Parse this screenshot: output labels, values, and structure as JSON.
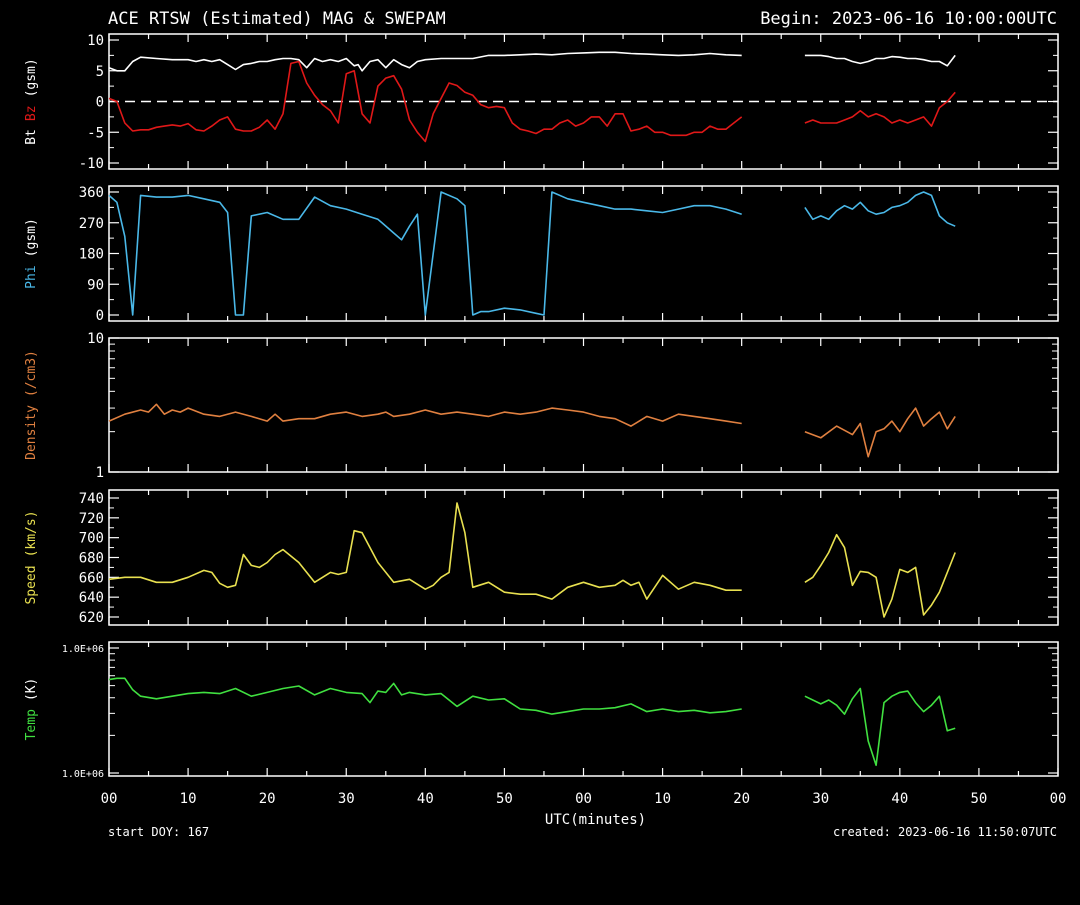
{
  "header": {
    "title": "ACE RTSW (Estimated) MAG & SWEPAM",
    "begin": "Begin: 2023-06-16 10:00:00UTC"
  },
  "footer": {
    "start_doy": "start DOY: 167",
    "created": "created: 2023-06-16 11:50:07UTC"
  },
  "colors": {
    "background": "#000000",
    "axis": "#ffffff",
    "bt": "#ffffff",
    "bz": "#e01818",
    "phi": "#4ab8e8",
    "density": "#e08040",
    "speed": "#e8e050",
    "temp": "#40e040"
  },
  "chart_data": [
    {
      "type": "line",
      "ylabel": [
        "Bt",
        "Bz",
        "(gsm)"
      ],
      "ylabel_colors": [
        "#ffffff",
        "#e01818",
        "#ffffff"
      ],
      "ylim": [
        -10,
        10
      ],
      "y_ticks": [
        "10",
        "5",
        "0",
        "-5",
        "-10"
      ],
      "y_tick_values": [
        10,
        5,
        0,
        -5,
        -10
      ],
      "zero_line": "dashed",
      "series": [
        {
          "name": "Bt",
          "color": "#ffffff",
          "x": [
            0,
            1,
            2,
            3,
            4,
            6,
            8,
            10,
            11,
            12,
            13,
            14,
            15,
            16,
            17,
            18,
            19,
            20,
            21,
            22,
            23,
            24,
            25,
            26,
            27,
            28,
            29,
            30,
            31,
            31.5,
            32,
            33,
            34,
            35,
            36,
            37,
            38,
            39,
            40,
            42,
            44,
            46,
            48,
            50,
            52,
            54,
            56,
            58,
            60,
            62,
            64,
            66,
            68,
            70,
            72,
            74,
            76,
            78,
            80,
            "gap",
            88,
            90,
            91,
            92,
            93,
            94,
            95,
            96,
            97,
            98,
            99,
            100,
            101,
            102,
            103,
            104,
            105,
            106,
            107
          ],
          "y": [
            5.5,
            5.0,
            5.0,
            6.5,
            7.2,
            7.0,
            6.8,
            6.8,
            6.5,
            6.8,
            6.5,
            6.8,
            6.0,
            5.2,
            6.0,
            6.2,
            6.5,
            6.5,
            6.8,
            7.0,
            7.0,
            6.8,
            5.5,
            7.0,
            6.5,
            6.8,
            6.5,
            7.0,
            5.8,
            6.0,
            5.0,
            6.5,
            6.8,
            5.5,
            6.8,
            6.0,
            5.5,
            6.5,
            6.8,
            7.0,
            7.0,
            7.0,
            7.5,
            7.5,
            7.6,
            7.7,
            7.6,
            7.8,
            7.9,
            8.0,
            8.0,
            7.8,
            7.7,
            7.6,
            7.5,
            7.6,
            7.8,
            7.6,
            7.5,
            null,
            7.5,
            7.5,
            7.3,
            7.0,
            7.0,
            6.5,
            6.2,
            6.5,
            7.0,
            7.0,
            7.3,
            7.2,
            7.0,
            7.0,
            6.8,
            6.5,
            6.5,
            5.8,
            7.5
          ]
        },
        {
          "name": "Bz",
          "color": "#e01818",
          "x": [
            0,
            1,
            2,
            3,
            4,
            5,
            6,
            7,
            8,
            9,
            10,
            11,
            12,
            13,
            14,
            15,
            16,
            17,
            18,
            19,
            20,
            21,
            22,
            23,
            24,
            25,
            26,
            27,
            28,
            29,
            30,
            31,
            32,
            33,
            34,
            35,
            36,
            37,
            38,
            39,
            40,
            41,
            42,
            43,
            44,
            45,
            46,
            47,
            48,
            49,
            50,
            51,
            52,
            53,
            54,
            55,
            56,
            57,
            58,
            59,
            60,
            61,
            62,
            63,
            64,
            65,
            66,
            67,
            68,
            69,
            70,
            71,
            72,
            73,
            74,
            75,
            76,
            77,
            78,
            79,
            80,
            "gap",
            88,
            89,
            90,
            91,
            92,
            93,
            94,
            95,
            96,
            97,
            98,
            99,
            100,
            101,
            102,
            103,
            104,
            105,
            106,
            107
          ],
          "y": [
            0.5,
            0,
            -3.5,
            -4.8,
            -4.6,
            -4.6,
            -4.2,
            -4.0,
            -3.8,
            -4.0,
            -3.6,
            -4.6,
            -4.8,
            -4.0,
            -3.0,
            -2.5,
            -4.5,
            -4.8,
            -4.8,
            -4.2,
            -3.0,
            -4.5,
            -2.0,
            6.2,
            6.5,
            3.0,
            1.0,
            -0.5,
            -1.5,
            -3.5,
            4.5,
            5.0,
            -2.0,
            -3.5,
            2.5,
            3.8,
            4.2,
            2.0,
            -3.0,
            -5.0,
            -6.5,
            -2.0,
            0.5,
            3.0,
            2.6,
            1.5,
            1.0,
            -0.5,
            -1.0,
            -0.8,
            -1.0,
            -3.5,
            -4.5,
            -4.8,
            -5.2,
            -4.5,
            -4.5,
            -3.5,
            -3.0,
            -4.0,
            -3.5,
            -2.5,
            -2.5,
            -4.0,
            -2.0,
            -2.0,
            -4.8,
            -4.5,
            -4.0,
            -5.0,
            -5.0,
            -5.5,
            -5.5,
            -5.5,
            -5.0,
            -5.0,
            -4.0,
            -4.5,
            -4.5,
            -3.5,
            -2.5,
            null,
            -3.5,
            -3.0,
            -3.5,
            -3.5,
            -3.5,
            -3.0,
            -2.5,
            -1.5,
            -2.5,
            -2.0,
            -2.5,
            -3.5,
            -3.0,
            -3.5,
            -3.0,
            -2.5,
            -4.0,
            -1.0,
            0,
            1.5
          ]
        }
      ]
    },
    {
      "type": "line",
      "ylabel": [
        "Phi",
        "(gsm)"
      ],
      "ylabel_colors": [
        "#4ab8e8",
        "#ffffff"
      ],
      "ylim": [
        0,
        360
      ],
      "y_ticks": [
        "360",
        "270",
        "180",
        "90",
        "0"
      ],
      "y_tick_values": [
        360,
        270,
        180,
        90,
        0
      ],
      "series": [
        {
          "name": "Phi",
          "color": "#4ab8e8",
          "x": [
            0,
            1,
            2,
            3,
            4,
            6,
            8,
            10,
            12,
            14,
            15,
            16,
            17,
            18,
            20,
            22,
            24,
            26,
            28,
            30,
            32,
            34,
            36,
            37,
            38,
            39,
            40,
            42,
            44,
            45,
            46,
            47,
            48,
            50,
            52,
            54,
            55,
            56,
            58,
            60,
            62,
            64,
            66,
            68,
            70,
            72,
            74,
            76,
            78,
            80,
            "gap",
            88,
            89,
            90,
            91,
            92,
            93,
            94,
            95,
            96,
            97,
            98,
            99,
            100,
            101,
            102,
            103,
            104,
            105,
            106,
            107
          ],
          "y": [
            350,
            330,
            230,
            0,
            350,
            345,
            345,
            350,
            340,
            330,
            300,
            0,
            0,
            290,
            300,
            280,
            280,
            345,
            320,
            310,
            295,
            280,
            240,
            220,
            260,
            295,
            0,
            360,
            340,
            320,
            0,
            10,
            10,
            20,
            15,
            5,
            0,
            360,
            340,
            330,
            320,
            310,
            310,
            305,
            300,
            310,
            320,
            320,
            310,
            295,
            null,
            315,
            280,
            290,
            280,
            305,
            320,
            310,
            330,
            305,
            295,
            300,
            315,
            320,
            330,
            350,
            360,
            350,
            290,
            270,
            260
          ]
        }
      ]
    },
    {
      "type": "line",
      "ylabel": [
        "Density",
        "(/cm3)"
      ],
      "ylabel_colors": [
        "#e08040",
        "#e08040"
      ],
      "y_scale": "log",
      "ylim": [
        1,
        10
      ],
      "y_ticks": [
        "10",
        "1"
      ],
      "y_tick_values": [
        10,
        1
      ],
      "series": [
        {
          "name": "Density",
          "color": "#e08040",
          "x": [
            0,
            2,
            4,
            5,
            6,
            7,
            8,
            9,
            10,
            12,
            14,
            16,
            18,
            20,
            21,
            22,
            24,
            26,
            28,
            30,
            32,
            34,
            35,
            36,
            38,
            40,
            42,
            44,
            46,
            48,
            50,
            52,
            54,
            56,
            58,
            60,
            62,
            64,
            66,
            68,
            70,
            72,
            74,
            76,
            78,
            80,
            "gap",
            88,
            90,
            92,
            94,
            95,
            96,
            97,
            98,
            99,
            100,
            101,
            102,
            103,
            104,
            105,
            106,
            107
          ],
          "y": [
            2.4,
            2.7,
            2.9,
            2.8,
            3.2,
            2.7,
            2.9,
            2.8,
            3.0,
            2.7,
            2.6,
            2.8,
            2.6,
            2.4,
            2.7,
            2.4,
            2.5,
            2.5,
            2.7,
            2.8,
            2.6,
            2.7,
            2.8,
            2.6,
            2.7,
            2.9,
            2.7,
            2.8,
            2.7,
            2.6,
            2.8,
            2.7,
            2.8,
            3.0,
            2.9,
            2.8,
            2.6,
            2.5,
            2.2,
            2.6,
            2.4,
            2.7,
            2.6,
            2.5,
            2.4,
            2.3,
            null,
            2.0,
            1.8,
            2.2,
            1.9,
            2.3,
            1.3,
            2.0,
            2.1,
            2.4,
            2.0,
            2.5,
            3.0,
            2.2,
            2.5,
            2.8,
            2.1,
            2.6
          ]
        }
      ]
    },
    {
      "type": "line",
      "ylabel": [
        "Speed",
        "(km/s)"
      ],
      "ylabel_colors": [
        "#e8e050",
        "#e8e050"
      ],
      "ylim": [
        620,
        740
      ],
      "y_ticks": [
        "740",
        "720",
        "700",
        "680",
        "660",
        "640",
        "620"
      ],
      "y_tick_values": [
        740,
        720,
        700,
        680,
        660,
        640,
        620
      ],
      "series": [
        {
          "name": "Speed",
          "color": "#e8e050",
          "x": [
            0,
            2,
            4,
            6,
            8,
            10,
            12,
            13,
            14,
            15,
            16,
            17,
            18,
            19,
            20,
            21,
            22,
            24,
            26,
            28,
            29,
            30,
            31,
            32,
            33,
            34,
            36,
            38,
            40,
            41,
            42,
            43,
            44,
            45,
            46,
            48,
            50,
            52,
            54,
            56,
            58,
            60,
            62,
            64,
            65,
            66,
            67,
            68,
            70,
            72,
            74,
            76,
            78,
            80,
            "gap",
            88,
            89,
            90,
            91,
            92,
            93,
            94,
            95,
            96,
            97,
            98,
            99,
            100,
            101,
            102,
            103,
            104,
            105,
            106,
            107
          ],
          "y": [
            658,
            660,
            660,
            655,
            655,
            660,
            667,
            665,
            654,
            650,
            652,
            683,
            672,
            670,
            675,
            683,
            688,
            675,
            655,
            665,
            663,
            665,
            707,
            705,
            690,
            675,
            655,
            658,
            648,
            652,
            660,
            665,
            735,
            705,
            650,
            655,
            645,
            643,
            643,
            638,
            650,
            655,
            650,
            652,
            657,
            652,
            655,
            638,
            662,
            648,
            655,
            652,
            647,
            647,
            null,
            655,
            660,
            672,
            685,
            703,
            690,
            652,
            666,
            665,
            660,
            620,
            638,
            668,
            665,
            670,
            622,
            632,
            645,
            665,
            685
          ]
        }
      ]
    },
    {
      "type": "line",
      "ylabel": [
        "Temp",
        "(K)"
      ],
      "ylabel_colors": [
        "#40e040",
        "#ffffff"
      ],
      "y_scale": "log",
      "ylim_labels": [
        "1.0E+06",
        "1.0E+06"
      ],
      "y_ticks": [
        "1.0E+06",
        "1.0E+06"
      ],
      "y_tick_values": [
        1,
        0
      ],
      "series": [
        {
          "name": "Temp",
          "color": "#40e040",
          "x": [
            0,
            1,
            2,
            3,
            4,
            6,
            8,
            10,
            12,
            14,
            16,
            18,
            20,
            22,
            24,
            26,
            28,
            30,
            32,
            33,
            34,
            35,
            36,
            37,
            38,
            40,
            42,
            44,
            46,
            48,
            50,
            52,
            54,
            56,
            58,
            60,
            62,
            64,
            66,
            68,
            70,
            72,
            74,
            76,
            78,
            80,
            "gap",
            88,
            90,
            91,
            92,
            93,
            94,
            95,
            96,
            97,
            98,
            99,
            100,
            101,
            102,
            103,
            104,
            105,
            106,
            107
          ],
          "y": [
            0.73,
            0.74,
            0.74,
            0.65,
            0.6,
            0.58,
            0.6,
            0.62,
            0.63,
            0.62,
            0.66,
            0.6,
            0.63,
            0.66,
            0.68,
            0.61,
            0.66,
            0.63,
            0.62,
            0.55,
            0.64,
            0.63,
            0.7,
            0.61,
            0.63,
            0.61,
            0.62,
            0.52,
            0.6,
            0.57,
            0.58,
            0.5,
            0.49,
            0.46,
            0.48,
            0.5,
            0.5,
            0.51,
            0.54,
            0.48,
            0.5,
            0.48,
            0.49,
            0.47,
            0.48,
            0.5,
            null,
            0.6,
            0.54,
            0.57,
            0.53,
            0.46,
            0.58,
            0.66,
            0.25,
            0.06,
            0.55,
            0.6,
            0.63,
            0.64,
            0.55,
            0.48,
            0.53,
            0.6,
            0.33,
            0.35
          ]
        }
      ]
    }
  ],
  "x_axis": {
    "xlim": [
      0,
      120
    ],
    "tick_values": [
      0,
      10,
      20,
      30,
      40,
      50,
      60,
      70,
      80,
      90,
      100,
      110,
      120
    ],
    "tick_labels": [
      "00",
      "10",
      "20",
      "30",
      "40",
      "50",
      "00",
      "10",
      "20",
      "30",
      "40",
      "50",
      "00"
    ],
    "label": "UTC(minutes)"
  }
}
